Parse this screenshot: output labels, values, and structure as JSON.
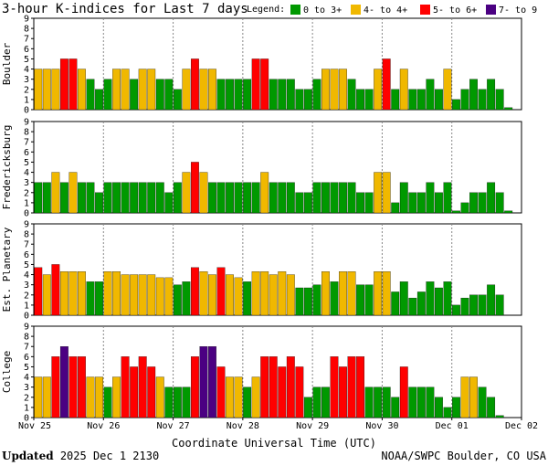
{
  "title": "3-hour K-indices for Last 7 days",
  "legend": {
    "label": "Legend:",
    "items": [
      {
        "label": "0 to 3+",
        "color": "#009900"
      },
      {
        "label": "4- to 4+",
        "color": "#f0b800"
      },
      {
        "label": "5- to 6+",
        "color": "#ff0000"
      },
      {
        "label": "7- to 9",
        "color": "#4b0082"
      }
    ]
  },
  "xlabel": "Coordinate Universal Time (UTC)",
  "footer": {
    "updated_label": "Updated",
    "updated_time": "2025 Dec  1 2130",
    "credit": "NOAA/SWPC Boulder, CO USA"
  },
  "chart_data": {
    "type": "bar",
    "x_ticks": [
      "Nov 25",
      "Nov 26",
      "Nov 27",
      "Nov 28",
      "Nov 29",
      "Nov 30",
      "Dec 01",
      "Dec 02"
    ],
    "y_ticks": [
      0,
      1,
      2,
      3,
      4,
      5,
      6,
      7,
      8,
      9
    ],
    "ylim": [
      0,
      9
    ],
    "bars_per_day": 8,
    "panels": [
      {
        "name": "Boulder",
        "values": [
          4,
          4,
          4,
          5,
          5,
          4,
          3,
          2,
          3,
          4,
          4,
          3,
          4,
          4,
          3,
          3,
          2,
          4,
          5,
          4,
          4,
          3,
          3,
          3,
          3,
          5,
          5,
          3,
          3,
          3,
          2,
          2,
          3,
          4,
          4,
          4,
          3,
          2,
          2,
          4,
          5,
          2,
          4,
          2,
          2,
          3,
          2,
          4,
          1,
          2,
          3,
          2,
          3,
          2,
          0.2
        ]
      },
      {
        "name": "Fredericksburg",
        "values": [
          3,
          3,
          4,
          3,
          4,
          3,
          3,
          2,
          3,
          3,
          3,
          3,
          3,
          3,
          3,
          2,
          3,
          4,
          5,
          4,
          3,
          3,
          3,
          3,
          3,
          3,
          4,
          3,
          3,
          3,
          2,
          2,
          3,
          3,
          3,
          3,
          3,
          2,
          2,
          4,
          4,
          1,
          3,
          2,
          2,
          3,
          2,
          3,
          0.2,
          1,
          2,
          2,
          3,
          2,
          0.2
        ]
      },
      {
        "name": "Est. Planetary",
        "values": [
          4.7,
          4,
          5,
          4.3,
          4.3,
          4.3,
          3.3,
          3.3,
          4.3,
          4.3,
          4,
          4,
          4,
          4,
          3.7,
          3.7,
          3,
          3.3,
          4.7,
          4.3,
          4,
          4.7,
          4,
          3.7,
          3.3,
          4.3,
          4.3,
          4,
          4.3,
          4,
          2.7,
          2.7,
          3,
          4.3,
          3.3,
          4.3,
          4.3,
          3,
          3,
          4.3,
          4.3,
          2.3,
          3.3,
          1.7,
          2.3,
          3.3,
          2.7,
          3.3,
          1,
          1.7,
          2,
          2,
          3,
          2,
          0
        ]
      },
      {
        "name": "College",
        "values": [
          4,
          4,
          6,
          7,
          6,
          6,
          4,
          4,
          3,
          4,
          6,
          5,
          6,
          5,
          4,
          3,
          3,
          3,
          6,
          7,
          7,
          5,
          4,
          4,
          3,
          4,
          6,
          6,
          5,
          6,
          5,
          2,
          3,
          3,
          6,
          5,
          6,
          6,
          3,
          3,
          3,
          2,
          5,
          3,
          3,
          3,
          2,
          1,
          2,
          4,
          4,
          3,
          2,
          0.2
        ]
      }
    ]
  }
}
